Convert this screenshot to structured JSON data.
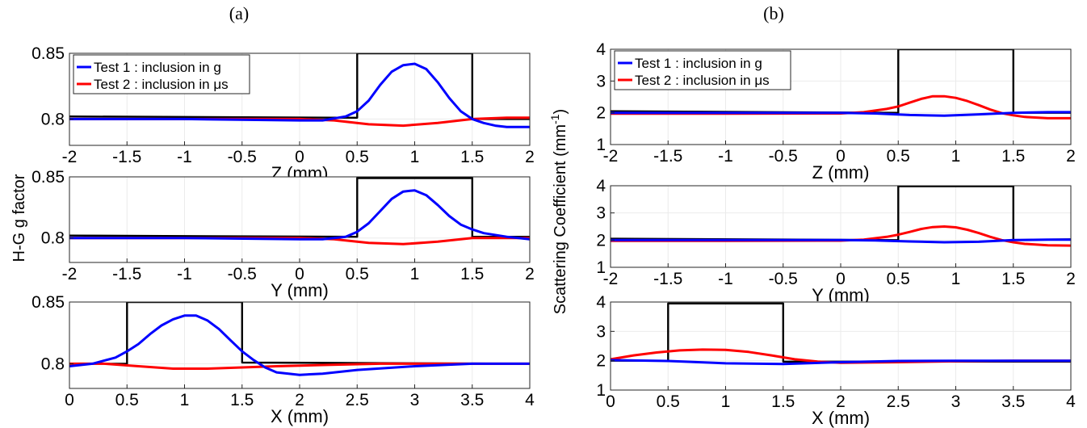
{
  "panels": [
    {
      "label": "(a)",
      "ylabel": "H-G g factor"
    },
    {
      "label": "(b)",
      "ylabel": "Scattering Coefficient (mm"
    }
  ],
  "ylabel_b_sup": "-1",
  "ylabel_b_close": ")",
  "colors": {
    "test1": "#0000ff",
    "test2": "#ff0000",
    "truth": "#000000",
    "grid": "#ebebeb",
    "axis": "#262626"
  },
  "chart_data": [
    {
      "type": "line",
      "panel": "a",
      "xlabel": "Z (mm)",
      "ylabel": "H-G g factor",
      "xlim": [
        -2,
        2
      ],
      "ylim": [
        0.78,
        0.85
      ],
      "xticks": [
        "-2",
        "-1.5",
        "-1",
        "-0.5",
        "0",
        "0.5",
        "1",
        "1.5",
        "2"
      ],
      "xtick_values": [
        -2,
        -1.5,
        -1,
        -0.5,
        0,
        0.5,
        1,
        1.5,
        2
      ],
      "yticks": [
        "0.8",
        "0.85"
      ],
      "ytick_values": [
        0.8,
        0.85
      ],
      "legend": {
        "placement": "top-left",
        "entries": [
          "Test 1 : inclusion in g",
          "Test 2 : inclusion in μs"
        ]
      },
      "series": [
        {
          "name": "Test 1 : inclusion in g",
          "color": "#0000ff",
          "x": [
            -2,
            -1,
            0,
            0.2,
            0.4,
            0.5,
            0.6,
            0.7,
            0.8,
            0.9,
            1.0,
            1.1,
            1.2,
            1.3,
            1.4,
            1.5,
            1.6,
            1.7,
            1.8,
            2.0
          ],
          "y": [
            0.8,
            0.8,
            0.799,
            0.799,
            0.802,
            0.806,
            0.814,
            0.826,
            0.836,
            0.841,
            0.842,
            0.838,
            0.828,
            0.816,
            0.806,
            0.8,
            0.797,
            0.795,
            0.794,
            0.794
          ]
        },
        {
          "name": "Test 2 : inclusion in μs",
          "color": "#ff0000",
          "x": [
            -2,
            -1,
            0,
            0.3,
            0.6,
            0.9,
            1.2,
            1.5,
            1.8,
            2.0
          ],
          "y": [
            0.8,
            0.8,
            0.8,
            0.799,
            0.796,
            0.795,
            0.797,
            0.8,
            0.801,
            0.801
          ]
        },
        {
          "color": "#000000",
          "x": [
            -2,
            0.5,
            0.5,
            1.5,
            1.5,
            2.0
          ],
          "y": [
            0.802,
            0.801,
            0.85,
            0.85,
            0.8,
            0.8
          ]
        }
      ]
    },
    {
      "type": "line",
      "panel": "a",
      "xlabel": "Y (mm)",
      "xlim": [
        -2,
        2
      ],
      "ylim": [
        0.78,
        0.85
      ],
      "xticks": [
        "-2",
        "-1.5",
        "-1",
        "-0.5",
        "0",
        "0.5",
        "1",
        "1.5",
        "2"
      ],
      "xtick_values": [
        -2,
        -1.5,
        -1,
        -0.5,
        0,
        0.5,
        1,
        1.5,
        2
      ],
      "yticks": [
        "0.8",
        "0.85"
      ],
      "ytick_values": [
        0.8,
        0.85
      ],
      "series": [
        {
          "name": "Test 1 : inclusion in g",
          "color": "#0000ff",
          "x": [
            -2,
            -1,
            0,
            0.2,
            0.4,
            0.5,
            0.6,
            0.7,
            0.8,
            0.9,
            1.0,
            1.1,
            1.2,
            1.3,
            1.4,
            1.5,
            1.6,
            1.8,
            2.0
          ],
          "y": [
            0.8,
            0.8,
            0.799,
            0.799,
            0.801,
            0.805,
            0.812,
            0.822,
            0.832,
            0.838,
            0.839,
            0.835,
            0.827,
            0.818,
            0.811,
            0.807,
            0.804,
            0.801,
            0.799
          ]
        },
        {
          "name": "Test 2 : inclusion in μs",
          "color": "#ff0000",
          "x": [
            -2,
            -1,
            0,
            0.3,
            0.6,
            0.9,
            1.2,
            1.5,
            1.8,
            2.0
          ],
          "y": [
            0.8,
            0.8,
            0.8,
            0.799,
            0.796,
            0.795,
            0.797,
            0.8,
            0.8,
            0.8
          ]
        },
        {
          "color": "#000000",
          "x": [
            -2,
            0.5,
            0.5,
            1.5,
            1.5,
            2.0
          ],
          "y": [
            0.802,
            0.801,
            0.849,
            0.849,
            0.801,
            0.801
          ]
        }
      ]
    },
    {
      "type": "line",
      "panel": "a",
      "xlabel": "X (mm)",
      "xlim": [
        0,
        4
      ],
      "ylim": [
        0.78,
        0.85
      ],
      "xticks": [
        "0",
        "0.5",
        "1",
        "1.5",
        "2",
        "2.5",
        "3",
        "3.5",
        "4"
      ],
      "xtick_values": [
        0,
        0.5,
        1,
        1.5,
        2,
        2.5,
        3,
        3.5,
        4
      ],
      "yticks": [
        "0.8",
        "0.85"
      ],
      "ytick_values": [
        0.8,
        0.85
      ],
      "series": [
        {
          "name": "Test 1 : inclusion in g",
          "color": "#0000ff",
          "x": [
            0,
            0.2,
            0.4,
            0.5,
            0.6,
            0.7,
            0.8,
            0.9,
            1.0,
            1.1,
            1.2,
            1.3,
            1.4,
            1.5,
            1.6,
            1.7,
            1.8,
            2.0,
            2.2,
            2.5,
            3.0,
            3.5,
            4.0
          ],
          "y": [
            0.798,
            0.8,
            0.805,
            0.81,
            0.816,
            0.824,
            0.831,
            0.836,
            0.839,
            0.839,
            0.835,
            0.828,
            0.819,
            0.81,
            0.803,
            0.797,
            0.793,
            0.791,
            0.792,
            0.795,
            0.798,
            0.8,
            0.8
          ]
        },
        {
          "name": "Test 2 : inclusion in μs",
          "color": "#ff0000",
          "x": [
            0,
            0.3,
            0.6,
            0.9,
            1.2,
            1.5,
            1.8,
            2.2,
            2.7,
            3.2,
            3.5,
            4.0
          ],
          "y": [
            0.8,
            0.8,
            0.798,
            0.796,
            0.796,
            0.797,
            0.798,
            0.799,
            0.8,
            0.8,
            0.8,
            0.8
          ]
        },
        {
          "color": "#000000",
          "x": [
            0,
            0.5,
            0.5,
            1.5,
            1.5,
            4.0
          ],
          "y": [
            0.8,
            0.8,
            0.85,
            0.85,
            0.801,
            0.8
          ]
        }
      ]
    },
    {
      "type": "line",
      "panel": "b",
      "xlabel": "Z (mm)",
      "ylabel": "Scattering Coefficient (mm-1)",
      "xlim": [
        -2,
        2
      ],
      "ylim": [
        1,
        4
      ],
      "xticks": [
        "-2",
        "-1.5",
        "-1",
        "-0.5",
        "0",
        "0.5",
        "1",
        "1.5",
        "2"
      ],
      "xtick_values": [
        -2,
        -1.5,
        -1,
        -0.5,
        0,
        0.5,
        1,
        1.5,
        2
      ],
      "yticks": [
        "1",
        "2",
        "3",
        "4"
      ],
      "ytick_values": [
        1,
        2,
        3,
        4
      ],
      "legend": {
        "placement": "top-left",
        "entries": [
          "Test 1 : inclusion in g",
          "Test 2 : inclusion in μs"
        ]
      },
      "series": [
        {
          "name": "Test 1 : inclusion in g",
          "color": "#0000ff",
          "x": [
            -2,
            -1,
            0,
            0.3,
            0.6,
            0.9,
            1.2,
            1.5,
            1.8,
            2.0
          ],
          "y": [
            2.0,
            2.0,
            2.0,
            1.98,
            1.93,
            1.91,
            1.95,
            2.0,
            2.02,
            2.02
          ]
        },
        {
          "name": "Test 2 : inclusion in μs",
          "color": "#ff0000",
          "x": [
            -2,
            -1,
            0,
            0.2,
            0.4,
            0.5,
            0.6,
            0.7,
            0.8,
            0.9,
            1.0,
            1.1,
            1.2,
            1.3,
            1.4,
            1.5,
            1.6,
            1.8,
            2.0
          ],
          "y": [
            1.97,
            1.97,
            1.98,
            2.02,
            2.12,
            2.2,
            2.32,
            2.44,
            2.52,
            2.52,
            2.47,
            2.37,
            2.24,
            2.1,
            1.99,
            1.92,
            1.87,
            1.83,
            1.83
          ]
        },
        {
          "color": "#000000",
          "x": [
            -2,
            0.5,
            0.5,
            1.5,
            1.5,
            2.0
          ],
          "y": [
            2.05,
            2.0,
            4.0,
            4.0,
            2.0,
            2.0
          ]
        }
      ]
    },
    {
      "type": "line",
      "panel": "b",
      "xlabel": "Y (mm)",
      "xlim": [
        -2,
        2
      ],
      "ylim": [
        1,
        4
      ],
      "xticks": [
        "-2",
        "-1.5",
        "-1",
        "-0.5",
        "0",
        "0.5",
        "1",
        "1.5",
        "2"
      ],
      "xtick_values": [
        -2,
        -1.5,
        -1,
        -0.5,
        0,
        0.5,
        1,
        1.5,
        2
      ],
      "yticks": [
        "1",
        "2",
        "3",
        "4"
      ],
      "ytick_values": [
        1,
        2,
        3,
        4
      ],
      "series": [
        {
          "name": "Test 1 : inclusion in g",
          "color": "#0000ff",
          "x": [
            -2,
            -1,
            0,
            0.3,
            0.6,
            0.9,
            1.2,
            1.5,
            1.8,
            2.0
          ],
          "y": [
            2.0,
            2.0,
            2.0,
            1.99,
            1.95,
            1.92,
            1.94,
            2.0,
            2.02,
            2.02
          ]
        },
        {
          "name": "Test 2 : inclusion in μs",
          "color": "#ff0000",
          "x": [
            -2,
            -1,
            0,
            0.2,
            0.4,
            0.5,
            0.6,
            0.7,
            0.8,
            0.9,
            1.0,
            1.1,
            1.2,
            1.3,
            1.4,
            1.5,
            1.6,
            1.8,
            2.0
          ],
          "y": [
            1.97,
            1.97,
            1.98,
            2.02,
            2.12,
            2.2,
            2.3,
            2.41,
            2.48,
            2.5,
            2.47,
            2.38,
            2.26,
            2.12,
            2.0,
            1.92,
            1.86,
            1.81,
            1.8
          ]
        },
        {
          "color": "#000000",
          "x": [
            -2,
            0.5,
            0.5,
            1.5,
            1.5,
            2.0
          ],
          "y": [
            2.05,
            2.0,
            3.98,
            3.98,
            2.0,
            2.03
          ]
        }
      ]
    },
    {
      "type": "line",
      "panel": "b",
      "xlabel": "X (mm)",
      "xlim": [
        0,
        4
      ],
      "ylim": [
        1,
        4
      ],
      "xticks": [
        "0",
        "0.5",
        "1",
        "1.5",
        "2",
        "2.5",
        "3",
        "3.5",
        "4"
      ],
      "xtick_values": [
        0,
        0.5,
        1,
        1.5,
        2,
        2.5,
        3,
        3.5,
        4
      ],
      "yticks": [
        "1",
        "2",
        "3",
        "4"
      ],
      "ytick_values": [
        1,
        2,
        3,
        4
      ],
      "series": [
        {
          "name": "Test 1 : inclusion in g",
          "color": "#0000ff",
          "x": [
            0,
            0.5,
            1.0,
            1.5,
            2.0,
            2.5,
            3.0,
            3.5,
            4.0
          ],
          "y": [
            2.02,
            1.99,
            1.91,
            1.89,
            1.95,
            1.99,
            2.0,
            2.0,
            2.0
          ]
        },
        {
          "name": "Test 2 : inclusion in μs",
          "color": "#ff0000",
          "x": [
            0,
            0.2,
            0.4,
            0.6,
            0.8,
            1.0,
            1.2,
            1.4,
            1.6,
            1.8,
            2.0,
            2.5,
            3.0,
            3.5,
            4.0
          ],
          "y": [
            2.05,
            2.18,
            2.28,
            2.35,
            2.38,
            2.37,
            2.3,
            2.18,
            2.05,
            1.97,
            1.93,
            1.95,
            1.98,
            2.0,
            2.0
          ]
        },
        {
          "color": "#000000",
          "x": [
            0,
            0.5,
            0.5,
            1.5,
            1.5,
            4.0
          ],
          "y": [
            2.0,
            2.0,
            3.95,
            3.95,
            1.97,
            1.97
          ]
        }
      ]
    }
  ]
}
